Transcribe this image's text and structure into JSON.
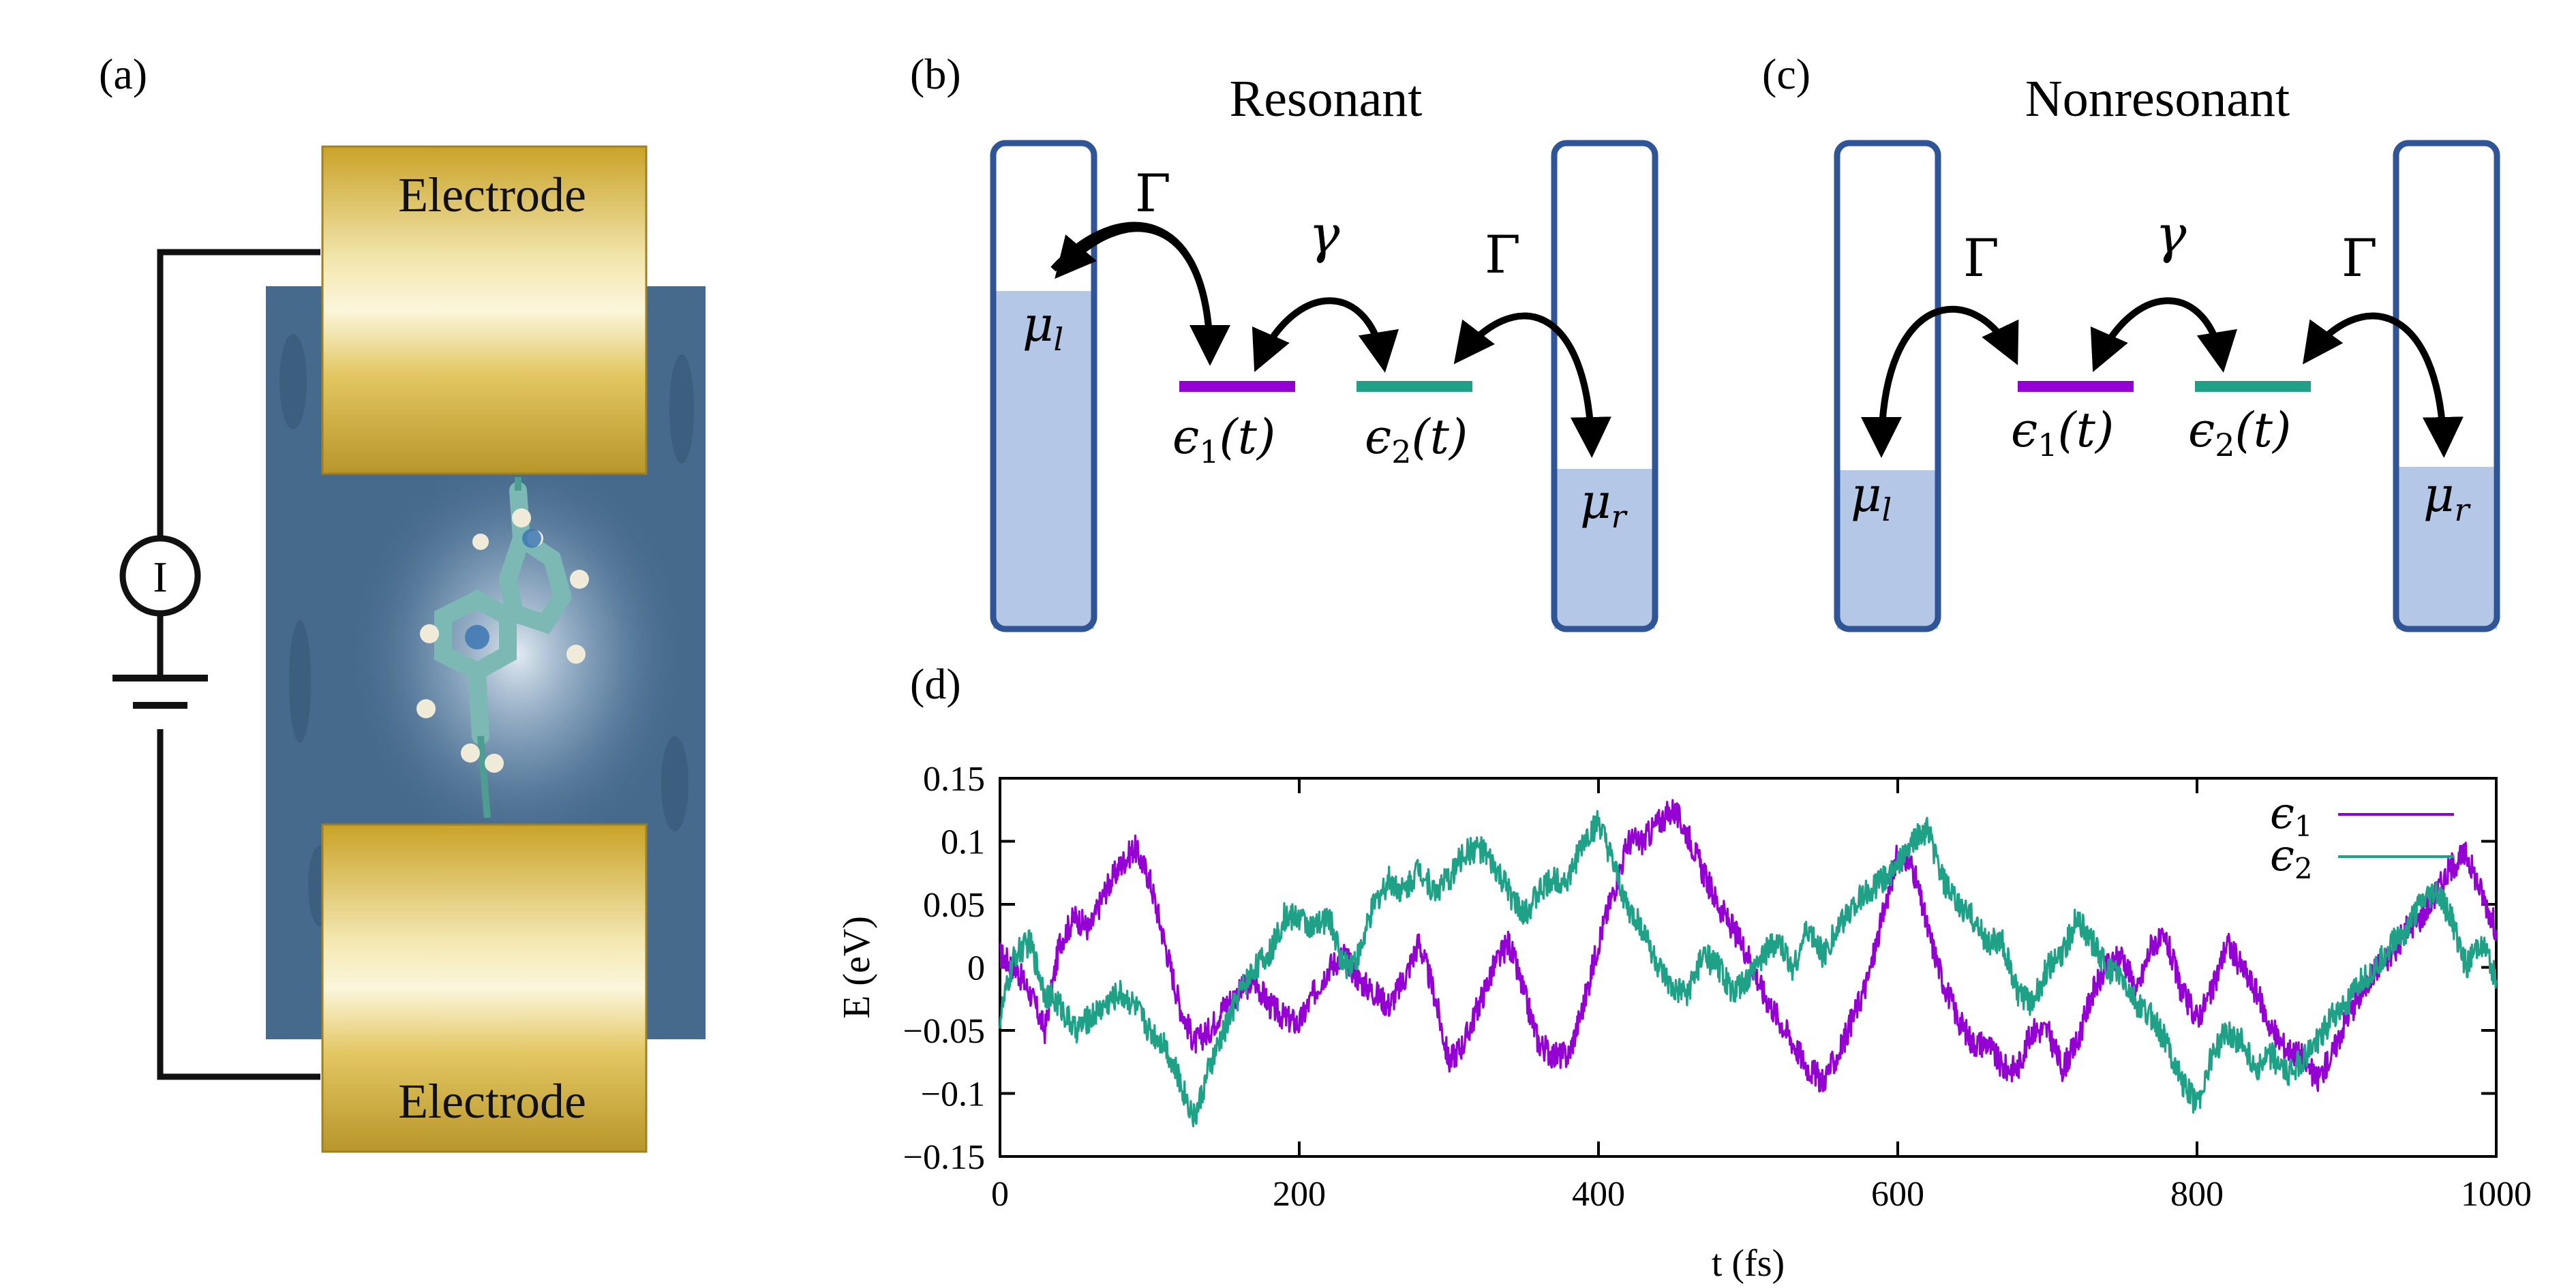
{
  "panels": {
    "a": {
      "label": "(a)",
      "electrode_top": "Electrode",
      "electrode_bottom": "Electrode",
      "meter": "I"
    },
    "b": {
      "label": "(b)",
      "title": "Resonant",
      "mu_left": "μ",
      "mu_left_sub": "l",
      "mu_right": "μ",
      "mu_right_sub": "r",
      "gamma_left": "Γ",
      "gamma_right": "Γ",
      "coupling": "γ",
      "level1": "ϵ",
      "level1_sub": "1",
      "level1_arg": "(t)",
      "level2": "ϵ",
      "level2_sub": "2",
      "level2_arg": "(t)"
    },
    "c": {
      "label": "(c)",
      "title": "Nonresonant",
      "mu_left": "μ",
      "mu_left_sub": "l",
      "mu_right": "μ",
      "mu_right_sub": "r",
      "gamma_left": "Γ",
      "gamma_right": "Γ",
      "coupling": "γ",
      "level1": "ϵ",
      "level1_sub": "1",
      "level1_arg": "(t)",
      "level2": "ϵ",
      "level2_sub": "2",
      "level2_arg": "(t)"
    },
    "d": {
      "label": "(d)"
    }
  },
  "colors": {
    "eps1": "#9400d3",
    "eps2": "#1fa187",
    "reservoir_border": "#2f5597",
    "reservoir_fill": "#b4c7e7",
    "gold": "#d4b43a",
    "substrate": "#4a6f93"
  },
  "chart_data": {
    "type": "line",
    "xlabel": "t (fs)",
    "ylabel": "E (eV)",
    "xlim": [
      0,
      1000
    ],
    "ylim": [
      -0.15,
      0.15
    ],
    "xticks": [
      0,
      200,
      400,
      600,
      800,
      1000
    ],
    "xtick_labels": [
      "0",
      "200",
      "400",
      "600",
      "800",
      "1000"
    ],
    "yticks": [
      -0.15,
      -0.1,
      -0.05,
      0,
      0.05,
      0.1,
      0.15
    ],
    "ytick_labels": [
      "−0.15",
      "−0.1",
      "−0.05",
      "0",
      "0.05",
      "0.1",
      "0.15"
    ],
    "grid": false,
    "legend_position": "top-right",
    "series": [
      {
        "name": "ϵ1",
        "legend_symbol": "ϵ",
        "legend_sub": "1",
        "color": "#9400d3",
        "x": [
          0,
          10,
          20,
          30,
          40,
          50,
          60,
          70,
          80,
          90,
          100,
          110,
          120,
          130,
          140,
          150,
          160,
          170,
          180,
          190,
          200,
          210,
          220,
          230,
          240,
          250,
          260,
          270,
          280,
          290,
          300,
          310,
          320,
          330,
          340,
          350,
          360,
          370,
          380,
          390,
          400,
          410,
          420,
          430,
          440,
          450,
          460,
          470,
          480,
          490,
          500,
          510,
          520,
          530,
          540,
          550,
          560,
          570,
          580,
          590,
          600,
          610,
          620,
          630,
          640,
          650,
          660,
          670,
          680,
          690,
          700,
          710,
          720,
          730,
          740,
          750,
          760,
          770,
          780,
          790,
          800,
          810,
          820,
          830,
          840,
          850,
          860,
          870,
          880,
          890,
          900,
          910,
          920,
          930,
          940,
          950,
          960,
          970,
          980,
          990,
          1000
        ],
        "y": [
          0.01,
          0.0,
          -0.02,
          -0.05,
          0.02,
          0.04,
          0.03,
          0.06,
          0.08,
          0.095,
          0.07,
          0.02,
          -0.03,
          -0.06,
          -0.05,
          -0.03,
          -0.02,
          -0.01,
          -0.03,
          -0.04,
          -0.045,
          -0.02,
          0.0,
          0.01,
          -0.01,
          -0.02,
          -0.03,
          -0.01,
          0.02,
          -0.02,
          -0.075,
          -0.06,
          -0.03,
          0.0,
          0.02,
          -0.02,
          -0.06,
          -0.07,
          -0.07,
          -0.03,
          0.02,
          0.06,
          0.1,
          0.1,
          0.115,
          0.125,
          0.105,
          0.075,
          0.05,
          0.03,
          0.01,
          -0.02,
          -0.04,
          -0.06,
          -0.08,
          -0.09,
          -0.07,
          -0.04,
          -0.01,
          0.04,
          0.09,
          0.08,
          0.03,
          -0.01,
          -0.04,
          -0.06,
          -0.06,
          -0.08,
          -0.08,
          -0.05,
          -0.05,
          -0.08,
          -0.06,
          -0.02,
          0.0,
          0.01,
          -0.02,
          0.02,
          0.02,
          -0.02,
          -0.04,
          -0.02,
          0.02,
          0.0,
          -0.02,
          -0.05,
          -0.065,
          -0.07,
          -0.09,
          -0.07,
          -0.04,
          -0.02,
          0.0,
          0.01,
          0.03,
          0.04,
          0.06,
          0.08,
          0.09,
          0.06,
          0.03
        ]
      },
      {
        "name": "ϵ2",
        "legend_symbol": "ϵ",
        "legend_sub": "2",
        "color": "#1fa187",
        "x": [
          0,
          10,
          20,
          30,
          40,
          50,
          60,
          70,
          80,
          90,
          100,
          110,
          120,
          130,
          140,
          150,
          160,
          170,
          180,
          190,
          200,
          210,
          220,
          230,
          240,
          250,
          260,
          270,
          280,
          290,
          300,
          310,
          320,
          330,
          340,
          350,
          360,
          370,
          380,
          390,
          400,
          410,
          420,
          430,
          440,
          450,
          460,
          470,
          480,
          490,
          500,
          510,
          520,
          530,
          540,
          550,
          560,
          570,
          580,
          590,
          600,
          610,
          620,
          630,
          640,
          650,
          660,
          670,
          680,
          690,
          700,
          710,
          720,
          730,
          740,
          750,
          760,
          770,
          780,
          790,
          800,
          810,
          820,
          830,
          840,
          850,
          860,
          870,
          880,
          890,
          900,
          910,
          920,
          930,
          940,
          950,
          960,
          970,
          980,
          990,
          1000
        ],
        "y": [
          -0.04,
          0.01,
          0.02,
          -0.02,
          -0.03,
          -0.05,
          -0.04,
          -0.03,
          -0.02,
          -0.03,
          -0.05,
          -0.06,
          -0.09,
          -0.12,
          -0.08,
          -0.05,
          -0.02,
          0.0,
          0.01,
          0.04,
          0.04,
          0.03,
          0.04,
          0.0,
          0.01,
          0.05,
          0.07,
          0.06,
          0.08,
          0.06,
          0.07,
          0.09,
          0.095,
          0.08,
          0.06,
          0.04,
          0.06,
          0.07,
          0.07,
          0.1,
          0.115,
          0.08,
          0.045,
          0.03,
          0.0,
          -0.02,
          -0.02,
          0.01,
          0.0,
          -0.02,
          -0.01,
          0.01,
          0.02,
          0.0,
          0.03,
          0.01,
          0.03,
          0.05,
          0.06,
          0.07,
          0.08,
          0.1,
          0.11,
          0.07,
          0.05,
          0.04,
          0.02,
          0.02,
          -0.02,
          -0.03,
          0.0,
          0.01,
          0.04,
          0.02,
          0.0,
          -0.01,
          -0.03,
          -0.04,
          -0.06,
          -0.09,
          -0.11,
          -0.07,
          -0.05,
          -0.06,
          -0.08,
          -0.07,
          -0.085,
          -0.075,
          -0.06,
          -0.04,
          -0.03,
          -0.01,
          0.0,
          0.02,
          0.03,
          0.05,
          0.06,
          0.04,
          0.0,
          0.02,
          -0.01
        ]
      }
    ]
  }
}
